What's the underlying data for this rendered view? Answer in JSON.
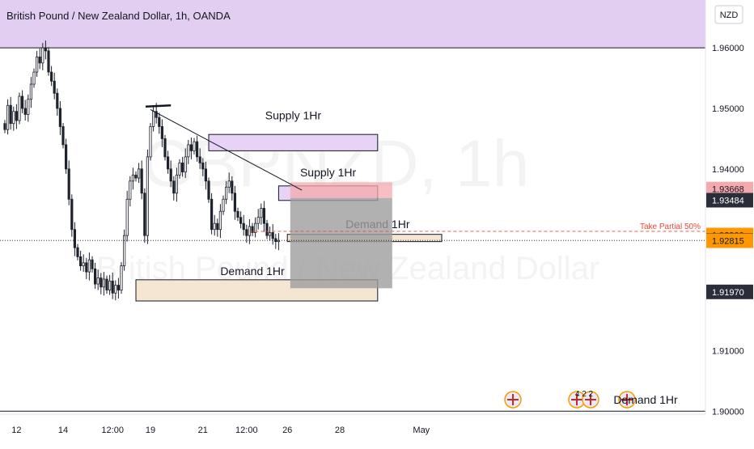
{
  "header": {
    "title": "British Pound / New Zealand Dollar, 1h, OANDA"
  },
  "currency_badge": "NZD",
  "watermark": {
    "symbol": "GBPNZD, 1h",
    "description": "British Pound / New Zealand Dollar"
  },
  "colors": {
    "up": "#26a69a",
    "down": "#ef5350",
    "candle": "#1e222d",
    "purple_zone": "#e1cef0",
    "supply_fill": "#e6d3f5",
    "demand_fill": "#f5e6d3",
    "position_red": "#f4a9ac",
    "position_grey": "#9e9e9e",
    "price_black": "#131722",
    "price_orange": "#ff9800",
    "price_red": "#f44336",
    "price_dark": "#2a2e39",
    "take_partial": "#f44336"
  },
  "chart_data": {
    "type": "candlestick",
    "title": "British Pound / New Zealand Dollar, 1h, OANDA",
    "ylim": [
      1.8995,
      1.9679
    ],
    "y_ticks": [
      1.96,
      1.95,
      1.94,
      1.91,
      1.9
    ],
    "y_tick_labels": [
      "1.96000",
      "1.95000",
      "1.94000",
      "1.91000",
      "1.90000"
    ],
    "x_ticks": [
      {
        "index": 4,
        "label": "12"
      },
      {
        "index": 20,
        "label": "14"
      },
      {
        "index": 37,
        "label": "12:00"
      },
      {
        "index": 50,
        "label": "19"
      },
      {
        "index": 68,
        "label": "21"
      },
      {
        "index": 83,
        "label": "12:00"
      },
      {
        "index": 97,
        "label": "26"
      },
      {
        "index": 115,
        "label": "28"
      },
      {
        "index": 143,
        "label": "May"
      }
    ],
    "closes": [
      1.9465,
      1.9505,
      1.9475,
      1.9495,
      1.948,
      1.952,
      1.95,
      1.949,
      1.9515,
      1.954,
      1.956,
      1.9585,
      1.9575,
      1.96,
      1.9595,
      1.956,
      1.9545,
      1.9525,
      1.95,
      1.947,
      1.944,
      1.94,
      1.935,
      1.93,
      1.927,
      1.9255,
      1.924,
      1.9245,
      1.923,
      1.925,
      1.9235,
      1.921,
      1.922,
      1.9205,
      1.9218,
      1.92,
      1.9215,
      1.9195,
      1.9208,
      1.92,
      1.924,
      1.929,
      1.935,
      1.938,
      1.939,
      1.9385,
      1.94,
      1.936,
      1.929,
      1.942,
      1.947,
      1.9495,
      1.9485,
      1.947,
      1.945,
      1.942,
      1.94,
      1.938,
      1.936,
      1.939,
      1.941,
      1.9395,
      1.942,
      1.944,
      1.943,
      1.9445,
      1.942,
      1.941,
      1.94,
      1.938,
      1.935,
      1.93,
      1.931,
      1.93,
      1.933,
      1.935,
      1.937,
      1.938,
      1.936,
      1.933,
      1.932,
      1.931,
      1.93,
      1.929,
      1.9305,
      1.9295,
      1.931,
      1.932,
      1.9335,
      1.931,
      1.929,
      1.9295,
      1.9285,
      1.928,
      1.9282
    ],
    "high_low_note": "",
    "price_labels": [
      {
        "label": "1.93668",
        "kind": "red"
      },
      {
        "label": "1.93484",
        "kind": "dark"
      },
      {
        "label": "1.92909",
        "kind": "orange"
      },
      {
        "label": "1.92820",
        "kind": "black"
      },
      {
        "label": "1.92815",
        "kind": "orange"
      },
      {
        "label": "1.91970",
        "kind": "dark"
      }
    ],
    "zones": [
      {
        "name": "Supply 1Hr",
        "kind": "supply",
        "from_index": 70,
        "to_index": 128,
        "top": 1.9457,
        "bottom": 1.943,
        "label_y": 1.9482
      },
      {
        "name": "Supply 1Hr",
        "kind": "supply",
        "from_index": 94,
        "to_index": 128,
        "top": 1.9372,
        "bottom": 1.9348,
        "label_y": 1.9388
      },
      {
        "name": "Demand 1Hr",
        "kind": "demand",
        "from_index": 97,
        "to_index": 150,
        "top": 1.9292,
        "bottom": 1.928,
        "label_y": 1.9302,
        "label_index": 128
      },
      {
        "name": "Demand 1Hr",
        "kind": "demand",
        "from_index": 45,
        "to_index": 128,
        "top": 1.9217,
        "bottom": 1.9182,
        "label_y": 1.9225,
        "label_index": 85
      }
    ],
    "take_partial": {
      "label": "Take Partial 50%",
      "price": 1.9297
    },
    "current_price": 1.9282,
    "events_label": "Demand 1Hr",
    "event_count_label": "4 2 2"
  }
}
